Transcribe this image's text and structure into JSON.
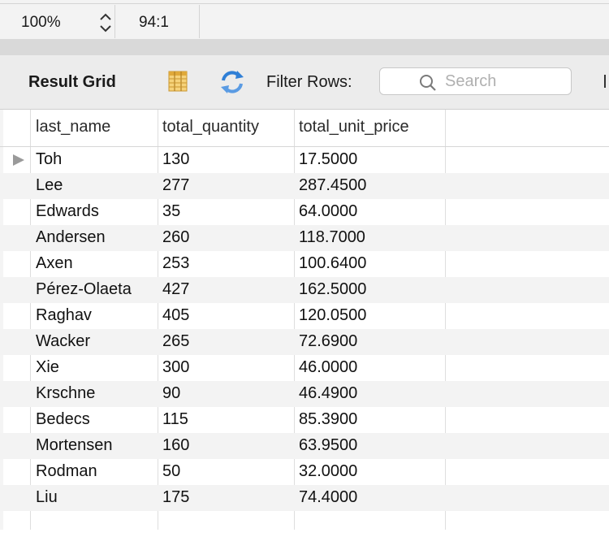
{
  "statusbar": {
    "zoom": "100%",
    "cursor_position": "94:1"
  },
  "toolbar": {
    "title": "Result Grid",
    "grid_icon": "grid-layout-icon",
    "refresh_icon": "refresh-icon",
    "filter_label": "Filter Rows:",
    "search_placeholder": "Search"
  },
  "grid": {
    "columns": [
      "last_name",
      "total_quantity",
      "total_unit_price"
    ],
    "rows": [
      [
        "Toh",
        "130",
        "17.5000"
      ],
      [
        "Lee",
        "277",
        "287.4500"
      ],
      [
        "Edwards",
        "35",
        "64.0000"
      ],
      [
        "Andersen",
        "260",
        "118.7000"
      ],
      [
        "Axen",
        "253",
        "100.6400"
      ],
      [
        "Pérez-Olaeta",
        "427",
        "162.5000"
      ],
      [
        "Raghav",
        "405",
        "120.0500"
      ],
      [
        "Wacker",
        "265",
        "72.6900"
      ],
      [
        "Xie",
        "300",
        "46.0000"
      ],
      [
        "Krschne",
        "90",
        "46.4900"
      ],
      [
        "Bedecs",
        "115",
        "85.3900"
      ],
      [
        "Mortensen",
        "160",
        "63.9500"
      ],
      [
        "Rodman",
        "50",
        "32.0000"
      ],
      [
        "Liu",
        "175",
        "74.4000"
      ]
    ]
  },
  "colors": {
    "toolbar_bg": "#ececec",
    "alt_row": "#f3f3f3",
    "refresh_blue": "#2f7fd6"
  }
}
